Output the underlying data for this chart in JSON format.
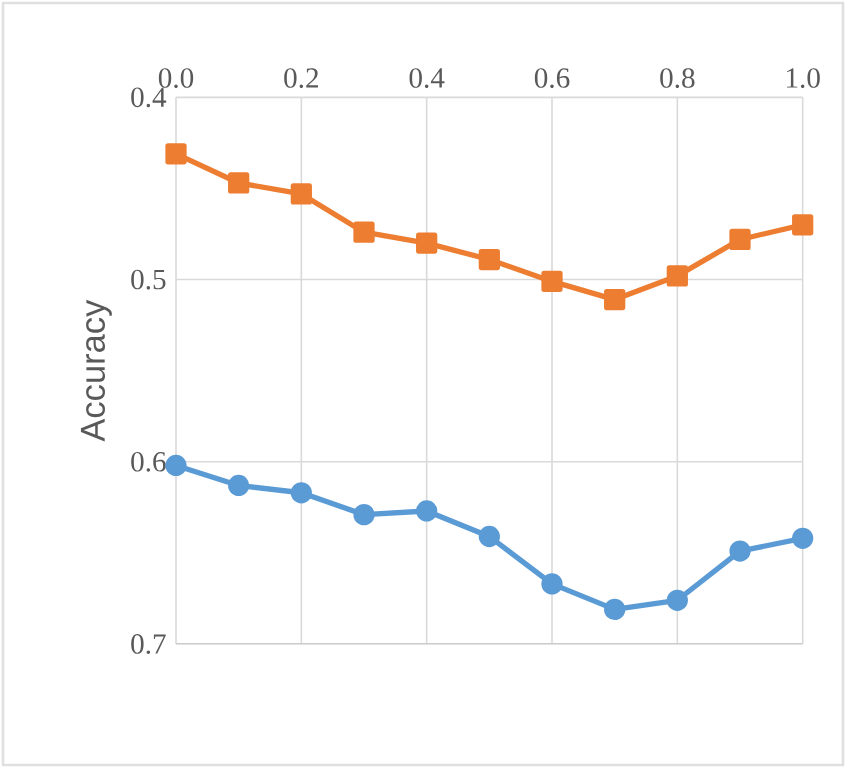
{
  "chart_data": {
    "type": "line",
    "ylabel": "Accuracy",
    "x": [
      0.0,
      0.1,
      0.2,
      0.3,
      0.4,
      0.5,
      0.6,
      0.7,
      0.8,
      0.9,
      1.0
    ],
    "xlim": [
      0,
      1
    ],
    "xticks": [
      {
        "value": 0,
        "label": "0.0"
      },
      0.2,
      0.4,
      0.6,
      0.8,
      {
        "value": 1,
        "label": "1.0"
      }
    ],
    "ylim": [
      0.7,
      0.4
    ],
    "yticks": [
      0.4,
      0.5,
      0.6,
      0.7
    ],
    "grid": true,
    "series": [
      {
        "color": "#5b9bd5",
        "marker": "circle",
        "values": [
          0.602,
          0.613,
          0.617,
          0.629,
          0.627,
          0.641,
          0.667,
          0.681,
          0.676,
          0.649,
          0.642
        ]
      },
      {
        "color": "#ed7d31",
        "marker": "square",
        "values": [
          0.431,
          0.447,
          0.453,
          0.474,
          0.48,
          0.489,
          0.501,
          0.511,
          0.498,
          0.478,
          0.47
        ]
      }
    ]
  }
}
